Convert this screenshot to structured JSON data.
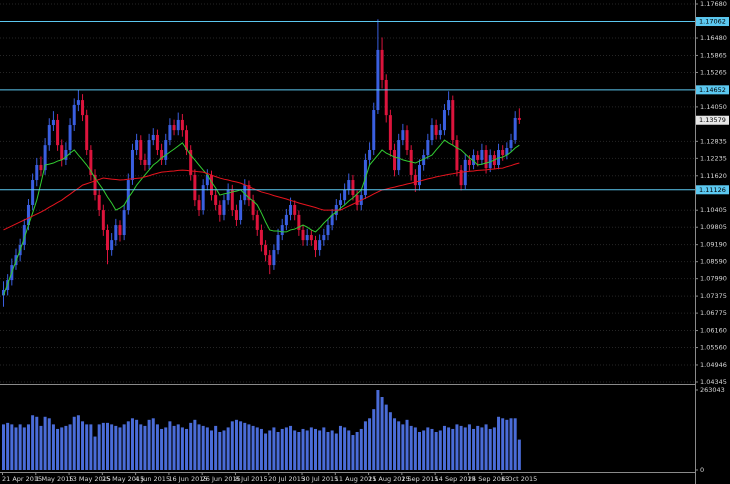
{
  "chart_data": {
    "type": "candlestick",
    "categories": [
      "21 Apr 2015",
      null,
      null,
      null,
      null,
      null,
      null,
      null,
      "1 May 2015",
      null,
      null,
      null,
      null,
      null,
      null,
      null,
      "13 May 2015",
      null,
      null,
      null,
      null,
      null,
      null,
      null,
      "25 May 2015",
      null,
      null,
      null,
      null,
      null,
      null,
      null,
      "4 Jun 2015",
      null,
      null,
      null,
      null,
      null,
      null,
      null,
      "16 Jun 2015",
      null,
      null,
      null,
      null,
      null,
      null,
      null,
      "26 Jun 2015",
      null,
      null,
      null,
      null,
      null,
      null,
      null,
      "8 Jul 2015",
      null,
      null,
      null,
      null,
      null,
      null,
      null,
      "20 Jul 2015",
      null,
      null,
      null,
      null,
      null,
      null,
      null,
      "30 Jul 2015",
      null,
      null,
      null,
      null,
      null,
      null,
      null,
      "11 Aug 2015",
      null,
      null,
      null,
      null,
      null,
      null,
      null,
      "21 Aug 2015",
      null,
      null,
      null,
      null,
      null,
      null,
      null,
      "2 Sep 2015",
      null,
      null,
      null,
      null,
      null,
      null,
      null,
      "14 Sep 2015",
      null,
      null,
      null,
      null,
      null,
      null,
      null,
      "24 Sep 2015",
      null,
      null,
      null,
      null,
      null,
      null,
      null,
      "6 Oct 2015",
      null,
      null,
      null,
      null
    ],
    "open": [
      1.074,
      1.0759,
      1.0794,
      1.0847,
      1.0882,
      1.0918,
      1.0988,
      1.1059,
      1.1147,
      1.12,
      1.1182,
      1.127,
      1.1341,
      1.1359,
      1.127,
      1.1218,
      1.1253,
      1.1341,
      1.1412,
      1.1429,
      1.1376,
      1.1253,
      1.1165,
      1.1094,
      1.1041,
      1.0971,
      1.09,
      1.0935,
      1.0988,
      1.0953,
      1.1041,
      1.1147,
      1.1253,
      1.1288,
      1.1218,
      1.12,
      1.1288,
      1.1306,
      1.1253,
      1.1218,
      1.1288,
      1.1341,
      1.1323,
      1.1359,
      1.1323,
      1.1253,
      1.1165,
      1.1076,
      1.1041,
      1.1129,
      1.1165,
      1.1094,
      1.1059,
      1.1024,
      1.1076,
      1.1112,
      1.1041,
      1.1006,
      1.1076,
      1.1129,
      1.1076,
      1.1024,
      1.0971,
      1.0918,
      1.0882,
      1.0847,
      1.09,
      1.0953,
      1.0988,
      1.1024,
      1.1059,
      1.1024,
      1.0971,
      1.0935,
      1.0953,
      1.0935,
      1.09,
      1.0935,
      1.0953,
      1.0988,
      1.1024,
      1.1059,
      1.1076,
      1.1112,
      1.1147,
      1.1094,
      1.1059,
      1.1094,
      1.1218,
      1.1253,
      1.1394,
      1.1606,
      1.15,
      1.1376,
      1.1253,
      1.1182,
      1.1288,
      1.1323,
      1.1253,
      1.1165,
      1.1129,
      1.12,
      1.1235,
      1.1288,
      1.1341,
      1.1306,
      1.1323,
      1.1394,
      1.1429,
      1.1288,
      1.1182,
      1.1129,
      1.1218,
      1.12,
      1.1235,
      1.1218,
      1.1253,
      1.1189,
      1.1235,
      1.12,
      1.1253,
      1.1235,
      1.126,
      1.1288,
      1.1366
    ],
    "high": [
      1.079,
      1.0815,
      1.087,
      1.0905,
      1.094,
      1.101,
      1.108,
      1.117,
      1.1225,
      1.123,
      1.1295,
      1.1365,
      1.139,
      1.138,
      1.129,
      1.128,
      1.1365,
      1.1435,
      1.1465,
      1.145,
      1.1395,
      1.127,
      1.1185,
      1.1115,
      1.106,
      1.099,
      1.096,
      1.101,
      1.1005,
      1.106,
      1.117,
      1.1275,
      1.131,
      1.1305,
      1.124,
      1.131,
      1.133,
      1.1325,
      1.1275,
      1.131,
      1.1365,
      1.136,
      1.1385,
      1.138,
      1.134,
      1.127,
      1.1185,
      1.1095,
      1.115,
      1.1185,
      1.118,
      1.1115,
      1.1075,
      1.1095,
      1.1135,
      1.113,
      1.106,
      1.1095,
      1.115,
      1.1145,
      1.1095,
      1.104,
      1.099,
      1.0935,
      1.09,
      1.092,
      1.0975,
      1.101,
      1.1045,
      1.1085,
      1.1075,
      1.104,
      1.099,
      1.0975,
      1.097,
      1.095,
      1.0955,
      1.0975,
      1.101,
      1.1045,
      1.108,
      1.11,
      1.1135,
      1.117,
      1.1165,
      1.111,
      1.1115,
      1.124,
      1.128,
      1.142,
      1.1714,
      1.165,
      1.152,
      1.1395,
      1.1275,
      1.131,
      1.1345,
      1.134,
      1.127,
      1.1185,
      1.122,
      1.1255,
      1.131,
      1.1365,
      1.136,
      1.1345,
      1.1415,
      1.146,
      1.1445,
      1.1305,
      1.12,
      1.124,
      1.1235,
      1.1255,
      1.125,
      1.1275,
      1.127,
      1.1255,
      1.125,
      1.1275,
      1.127,
      1.128,
      1.131,
      1.139,
      1.14
    ],
    "low": [
      1.07,
      1.074,
      1.0775,
      1.083,
      1.086,
      1.09,
      1.097,
      1.104,
      1.1125,
      1.116,
      1.1165,
      1.125,
      1.132,
      1.125,
      1.1195,
      1.12,
      1.1235,
      1.132,
      1.139,
      1.1355,
      1.1235,
      1.1145,
      1.1075,
      1.102,
      1.095,
      1.085,
      1.088,
      1.0915,
      1.093,
      1.0935,
      1.1025,
      1.113,
      1.1235,
      1.12,
      1.118,
      1.1185,
      1.127,
      1.1235,
      1.12,
      1.12,
      1.127,
      1.1305,
      1.1305,
      1.13,
      1.1235,
      1.1145,
      1.1055,
      1.102,
      1.1025,
      1.111,
      1.1075,
      1.104,
      1.1,
      1.1005,
      1.106,
      1.102,
      1.0985,
      1.099,
      1.106,
      1.1055,
      1.1005,
      1.095,
      1.0895,
      1.086,
      1.0815,
      1.083,
      1.0885,
      1.0935,
      1.097,
      1.1005,
      1.1005,
      1.095,
      1.0915,
      1.0915,
      1.0915,
      1.0875,
      1.088,
      1.0915,
      1.0935,
      1.097,
      1.1005,
      1.104,
      1.106,
      1.1095,
      1.1075,
      1.104,
      1.104,
      1.108,
      1.12,
      1.1235,
      1.138,
      1.147,
      1.135,
      1.123,
      1.116,
      1.1165,
      1.127,
      1.1235,
      1.1145,
      1.1105,
      1.111,
      1.118,
      1.122,
      1.127,
      1.129,
      1.129,
      1.1305,
      1.1375,
      1.127,
      1.116,
      1.111,
      1.1115,
      1.118,
      1.1185,
      1.1195,
      1.12,
      1.117,
      1.1175,
      1.1185,
      1.1185,
      1.1215,
      1.122,
      1.1245,
      1.1275,
      1.1345
    ],
    "close": [
      1.0759,
      1.0794,
      1.0847,
      1.0882,
      1.0918,
      1.0988,
      1.1059,
      1.1147,
      1.12,
      1.1182,
      1.127,
      1.1341,
      1.1359,
      1.127,
      1.1218,
      1.1253,
      1.1341,
      1.1412,
      1.1429,
      1.1376,
      1.1253,
      1.1165,
      1.1094,
      1.1041,
      1.0971,
      1.09,
      1.0935,
      1.0988,
      1.0953,
      1.1041,
      1.1147,
      1.1253,
      1.1288,
      1.1218,
      1.12,
      1.1288,
      1.1306,
      1.1253,
      1.1218,
      1.1288,
      1.1341,
      1.1323,
      1.1359,
      1.1323,
      1.1253,
      1.1165,
      1.1076,
      1.1041,
      1.1129,
      1.1165,
      1.1094,
      1.1059,
      1.1024,
      1.1076,
      1.1112,
      1.1041,
      1.1006,
      1.1076,
      1.1129,
      1.1076,
      1.1024,
      1.0971,
      1.0918,
      1.0882,
      1.0847,
      1.09,
      1.0953,
      1.0988,
      1.1024,
      1.1059,
      1.1024,
      1.0971,
      1.0935,
      1.0953,
      1.0935,
      1.09,
      1.0935,
      1.0953,
      1.0988,
      1.1024,
      1.1059,
      1.1076,
      1.1112,
      1.1147,
      1.1094,
      1.1059,
      1.1094,
      1.1218,
      1.1253,
      1.1394,
      1.1606,
      1.15,
      1.1376,
      1.1253,
      1.1182,
      1.1288,
      1.1323,
      1.1253,
      1.1165,
      1.1129,
      1.12,
      1.1235,
      1.1288,
      1.1341,
      1.1306,
      1.1323,
      1.1394,
      1.1429,
      1.1288,
      1.1182,
      1.1129,
      1.1218,
      1.12,
      1.1235,
      1.1218,
      1.1253,
      1.1189,
      1.1235,
      1.12,
      1.1253,
      1.1235,
      1.126,
      1.1288,
      1.1366,
      1.1359
    ],
    "up_color": "#3a5fe0",
    "down_color": "#dc143c",
    "moving_averages": [
      {
        "color": "#32cd32",
        "values": [
          1.0741,
          1.078,
          1.0822,
          1.0861,
          1.09,
          1.0942,
          1.0988,
          1.1031,
          1.1076,
          1.1136,
          1.12,
          1.1203,
          1.1207,
          1.1214,
          1.1218,
          1.1228,
          1.1242,
          1.1253,
          1.1235,
          1.1218,
          1.12,
          1.1179,
          1.1154,
          1.1133,
          1.1112,
          1.1087,
          1.1066,
          1.1041,
          1.1048,
          1.1059,
          1.1084,
          1.1105,
          1.1129,
          1.1147,
          1.1165,
          1.1182,
          1.12,
          1.1211,
          1.1225,
          1.1235,
          1.1246,
          1.1256,
          1.1267,
          1.1278,
          1.1256,
          1.1235,
          1.1218,
          1.12,
          1.1182,
          1.1165,
          1.114,
          1.1119,
          1.1094,
          1.1098,
          1.1101,
          1.1105,
          1.1108,
          1.1112,
          1.1098,
          1.1084,
          1.1073,
          1.1059,
          1.1031,
          1.0999,
          1.0971,
          1.0967,
          1.0967,
          1.0964,
          1.0964,
          1.0971,
          1.0974,
          1.0981,
          1.0988,
          1.0981,
          1.0971,
          1.0964,
          1.0978,
          1.0995,
          1.1009,
          1.1024,
          1.1034,
          1.1048,
          1.1059,
          1.1073,
          1.1084,
          1.1098,
          1.1112,
          1.1154,
          1.12,
          1.1218,
          1.1235,
          1.1253,
          1.1242,
          1.1235,
          1.1228,
          1.1225,
          1.1218,
          1.1214,
          1.1211,
          1.1207,
          1.1214,
          1.1221,
          1.1228,
          1.1235,
          1.1253,
          1.127,
          1.1288,
          1.1278,
          1.127,
          1.126,
          1.1253,
          1.1239,
          1.1225,
          1.1214,
          1.12,
          1.1203,
          1.1207,
          1.1211,
          1.1218,
          1.1225,
          1.1228,
          1.1235,
          1.1246,
          1.126,
          1.127
        ]
      },
      {
        "color": "#e8141e",
        "values": [
          1.0971,
          1.0978,
          1.0985,
          1.0992,
          1.0999,
          1.1006,
          1.1013,
          1.102,
          1.1027,
          1.1034,
          1.1042,
          1.1051,
          1.1059,
          1.1068,
          1.1076,
          1.1087,
          1.1097,
          1.1108,
          1.1118,
          1.1129,
          1.1134,
          1.1139,
          1.1144,
          1.1149,
          1.1154,
          1.1152,
          1.115,
          1.1149,
          1.1147,
          1.1148,
          1.115,
          1.1151,
          1.1153,
          1.1154,
          1.1158,
          1.1162,
          1.1167,
          1.1171,
          1.1175,
          1.1176,
          1.1178,
          1.1179,
          1.1181,
          1.1182,
          1.1181,
          1.1179,
          1.1178,
          1.1176,
          1.1175,
          1.117,
          1.1164,
          1.1159,
          1.1154,
          1.115,
          1.1147,
          1.1143,
          1.114,
          1.1136,
          1.113,
          1.1124,
          1.1117,
          1.1111,
          1.1105,
          1.1101,
          1.1097,
          1.1092,
          1.1088,
          1.1084,
          1.108,
          1.1075,
          1.1071,
          1.1066,
          1.1062,
          1.1058,
          1.1054,
          1.105,
          1.1045,
          1.1041,
          1.1041,
          1.1041,
          1.1041,
          1.1041,
          1.1048,
          1.1055,
          1.1062,
          1.1069,
          1.1076,
          1.1083,
          1.109,
          1.1098,
          1.1105,
          1.1112,
          1.1115,
          1.1119,
          1.1122,
          1.1126,
          1.1129,
          1.1133,
          1.1136,
          1.114,
          1.1143,
          1.1147,
          1.1151,
          1.1154,
          1.1158,
          1.1161,
          1.1164,
          1.1167,
          1.1169,
          1.1172,
          1.1175,
          1.1176,
          1.1178,
          1.1179,
          1.1181,
          1.1182,
          1.1183,
          1.1185,
          1.1186,
          1.1188,
          1.1189,
          1.1194,
          1.1198,
          1.1203,
          1.1207
        ]
      }
    ],
    "ylim": [
      1.04345,
      1.1768
    ],
    "yticks": [
      {
        "value": 1.1768,
        "label": "1.17680"
      },
      {
        "value": 1.1648,
        "label": "1.16480"
      },
      1.15865,
      1.15265,
      {
        "value": 1.1405,
        "label": "1.14050"
      },
      1.12835,
      1.12235,
      {
        "value": 1.1162,
        "label": "1.11620"
      },
      1.10405,
      1.09805,
      {
        "value": 1.0919,
        "label": "1.09190"
      },
      {
        "value": 1.0859,
        "label": "1.08590"
      },
      {
        "value": 1.0799,
        "label": "1.07990"
      },
      1.07375,
      1.06775,
      {
        "value": 1.0616,
        "label": "1.06160"
      },
      {
        "value": 1.0556,
        "label": "1.05560"
      },
      1.04946,
      1.04345
    ],
    "levels": [
      1.17062,
      1.14652,
      1.11126
    ],
    "level_color": "#5cc8f0",
    "last_price": 1.13579,
    "grid": true,
    "volume": {
      "color": "#4a6cd8",
      "values": [
        150000,
        155000,
        150000,
        140000,
        150000,
        140000,
        150000,
        180000,
        175000,
        145000,
        175000,
        170000,
        150000,
        135000,
        140000,
        145000,
        150000,
        175000,
        180000,
        160000,
        150000,
        150000,
        110000,
        150000,
        155000,
        155000,
        150000,
        145000,
        140000,
        150000,
        160000,
        170000,
        165000,
        150000,
        145000,
        165000,
        170000,
        150000,
        135000,
        140000,
        160000,
        145000,
        150000,
        140000,
        135000,
        155000,
        165000,
        150000,
        145000,
        140000,
        130000,
        145000,
        125000,
        130000,
        140000,
        160000,
        165000,
        160000,
        155000,
        150000,
        145000,
        140000,
        135000,
        120000,
        130000,
        140000,
        125000,
        135000,
        140000,
        145000,
        130000,
        125000,
        135000,
        130000,
        140000,
        135000,
        130000,
        140000,
        125000,
        130000,
        120000,
        145000,
        140000,
        130000,
        115000,
        125000,
        135000,
        160000,
        170000,
        200000,
        263000,
        240000,
        215000,
        190000,
        170000,
        160000,
        150000,
        165000,
        145000,
        140000,
        125000,
        130000,
        140000,
        135000,
        125000,
        130000,
        145000,
        140000,
        135000,
        150000,
        145000,
        140000,
        150000,
        135000,
        145000,
        140000,
        150000,
        135000,
        140000,
        175000,
        170000,
        165000,
        170000,
        170000,
        100000
      ],
      "ylim": [
        0,
        263043
      ],
      "yticks": [
        263043,
        0
      ]
    }
  }
}
